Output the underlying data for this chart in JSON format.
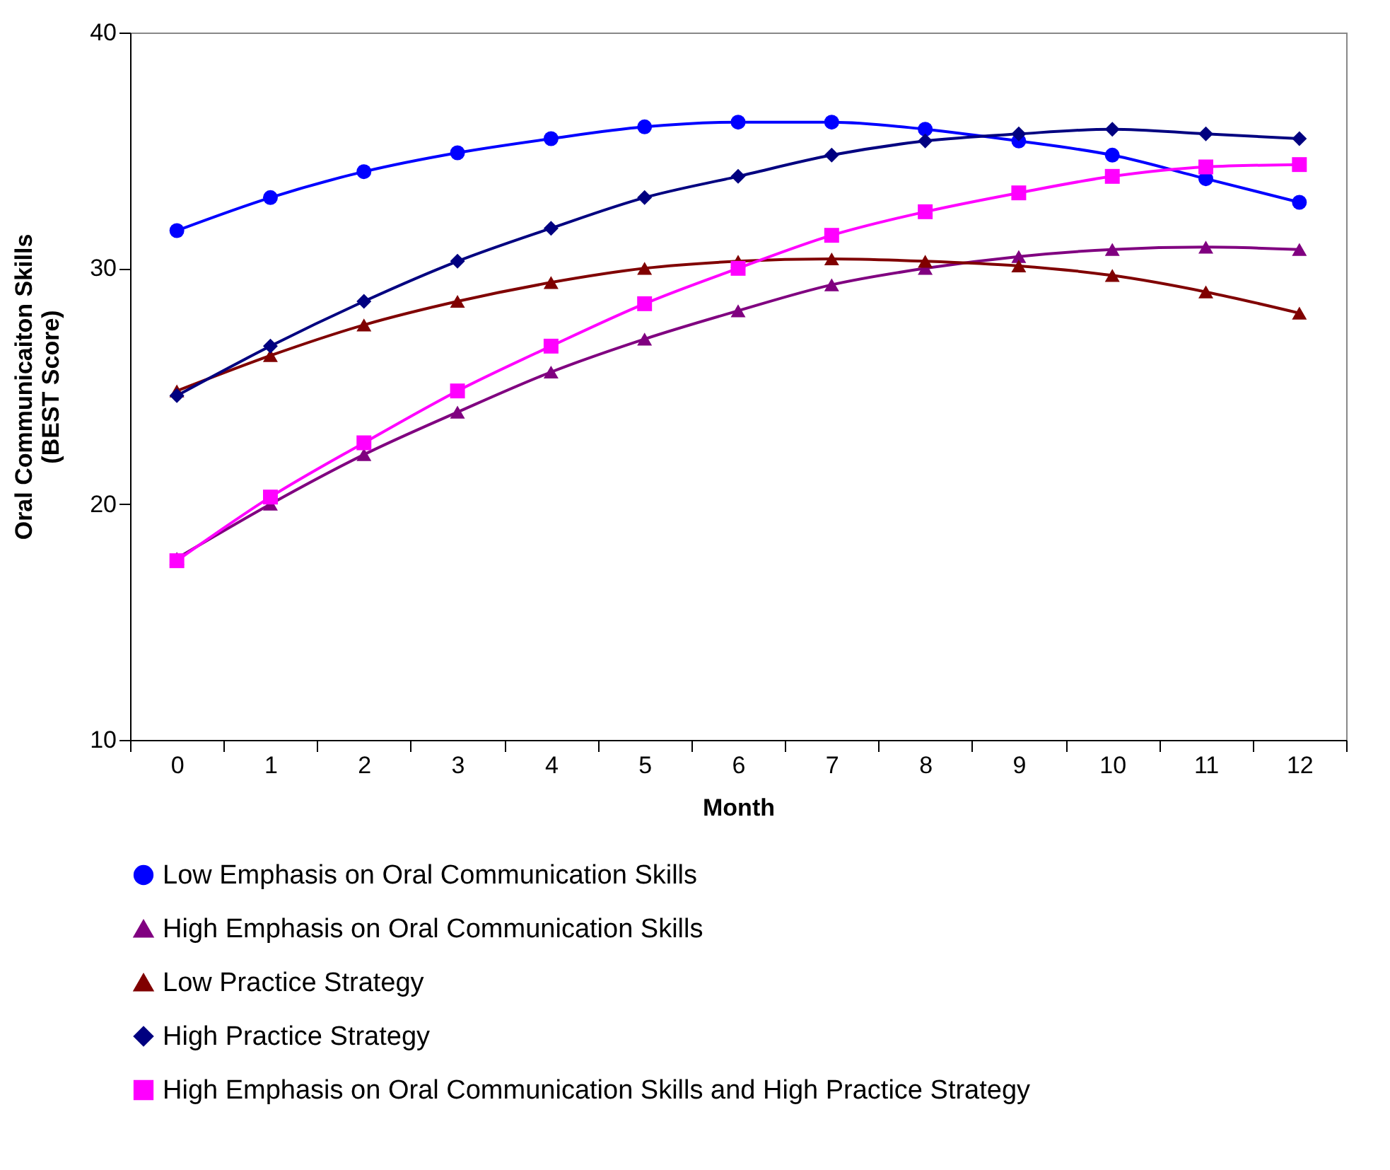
{
  "chart_data": {
    "type": "line",
    "xlabel": "Month",
    "ylabel": "Oral Communicaiton Skills\n(BEST Score)",
    "x": [
      0,
      1,
      2,
      3,
      4,
      5,
      6,
      7,
      8,
      9,
      10,
      11,
      12
    ],
    "xlim": [
      -0.5,
      12.5
    ],
    "xticks": [
      {
        "value": -0.5,
        "label": null
      },
      0,
      {
        "value": 0.5,
        "label": null
      },
      1,
      {
        "value": 1.5,
        "label": null
      },
      2,
      {
        "value": 2.5,
        "label": null
      },
      3,
      {
        "value": 3.5,
        "label": null
      },
      4,
      {
        "value": 4.5,
        "label": null
      },
      5,
      {
        "value": 5.5,
        "label": null
      },
      6,
      {
        "value": 6.5,
        "label": null
      },
      7,
      {
        "value": 7.5,
        "label": null
      },
      8,
      {
        "value": 8.5,
        "label": null
      },
      9,
      {
        "value": 9.5,
        "label": null
      },
      10,
      {
        "value": 10.5,
        "label": null
      },
      11,
      {
        "value": 11.5,
        "label": null
      },
      12,
      {
        "value": 12.5,
        "label": null
      }
    ],
    "ylim": [
      10,
      40
    ],
    "yticks": [
      10,
      20,
      30,
      40
    ],
    "grid": false,
    "legend": "bottom",
    "series": [
      {
        "name": "Low Emphasis on Oral Communication Skills",
        "color": "#0000ff",
        "marker": "circle",
        "values": [
          31.6,
          33.0,
          34.1,
          34.9,
          35.5,
          36.0,
          36.2,
          36.2,
          35.9,
          35.4,
          34.8,
          33.8,
          32.8
        ]
      },
      {
        "name": "High Emphasis on Oral Communication Skills",
        "color": "#800080",
        "marker": "triangle",
        "values": [
          17.7,
          20.0,
          22.1,
          23.9,
          25.6,
          27.0,
          28.2,
          29.3,
          30.0,
          30.5,
          30.8,
          30.9,
          30.8
        ]
      },
      {
        "name": "Low Practice Strategy",
        "color": "#800000",
        "marker": "triangle",
        "values": [
          24.8,
          26.3,
          27.6,
          28.6,
          29.4,
          30.0,
          30.3,
          30.4,
          30.3,
          30.1,
          29.7,
          29.0,
          28.1
        ]
      },
      {
        "name": "High Practice Strategy",
        "color": "#000080",
        "marker": "diamond",
        "values": [
          24.6,
          26.7,
          28.6,
          30.3,
          31.7,
          33.0,
          33.9,
          34.8,
          35.4,
          35.7,
          35.9,
          35.7,
          35.5
        ]
      },
      {
        "name": "High Emphasis on Oral Communication Skills and High Practice Strategy",
        "color": "#ff00ff",
        "marker": "square",
        "values": [
          17.6,
          20.3,
          22.6,
          24.8,
          26.7,
          28.5,
          30.0,
          31.4,
          32.4,
          33.2,
          33.9,
          34.3,
          34.4
        ]
      }
    ]
  }
}
